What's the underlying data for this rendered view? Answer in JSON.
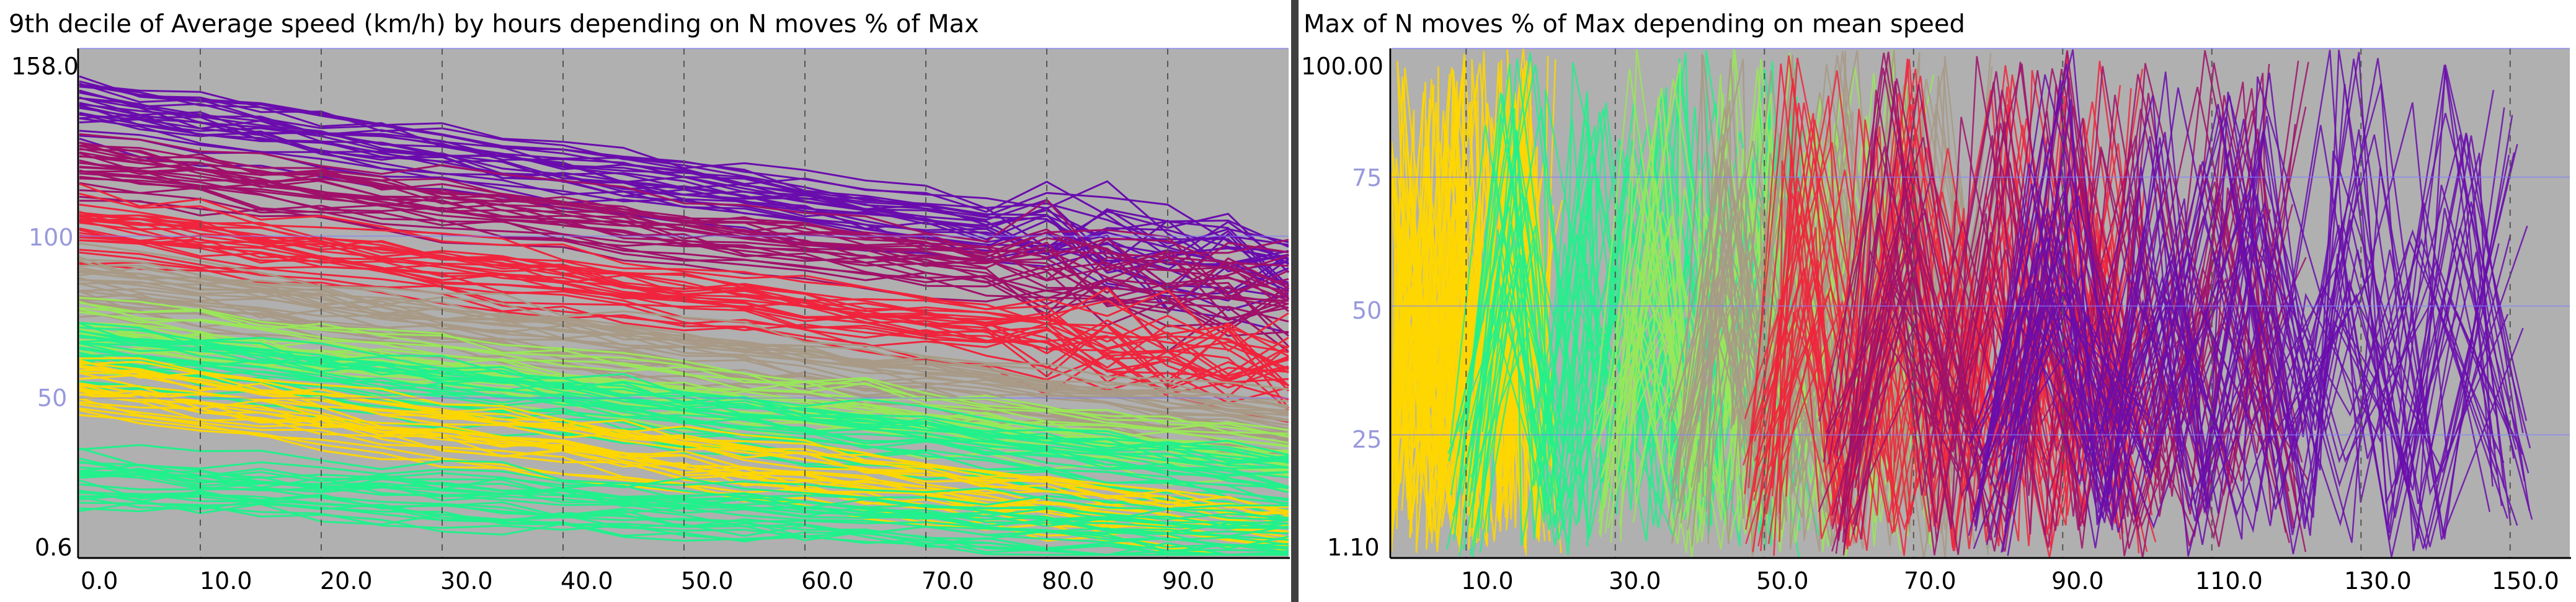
{
  "panels": [
    {
      "title": "9th decile of Average speed (km/h) by hours depending on N moves % of Max",
      "x_ticks": [
        "0.0",
        "10.0",
        "20.0",
        "30.0",
        "40.0",
        "50.0",
        "60.0",
        "70.0",
        "80.0",
        "90.0"
      ],
      "y_ticks": [
        "158.0",
        "100",
        "50",
        "0.6"
      ]
    },
    {
      "title": "Max of N moves % of Max depending on mean speed",
      "x_ticks": [
        "10.0",
        "30.0",
        "50.0",
        "70.0",
        "90.0",
        "110.0",
        "130.0",
        "150.0"
      ],
      "y_ticks": [
        "100.00",
        "75",
        "50",
        "25",
        "1.10"
      ]
    }
  ],
  "chart_data": [
    {
      "type": "line",
      "title": "9th decile of Average speed (km/h) by hours depending on N moves % of Max",
      "xlabel": "",
      "ylabel": "",
      "xlim": [
        0,
        100
      ],
      "ylim": [
        0.6,
        158
      ],
      "x_ticks": [
        0,
        10,
        20,
        30,
        40,
        50,
        60,
        70,
        80,
        90
      ],
      "y_ticks_labeled": [
        158.0,
        100,
        50,
        0.6
      ],
      "grid": true,
      "background": "#b0b0b0",
      "color_bands": [
        {
          "color": "#6a0dad",
          "y_start": 140,
          "y_end": 90
        },
        {
          "color": "#a0106a",
          "y_start": 122,
          "y_end": 80
        },
        {
          "color": "#f0243c",
          "y_start": 104,
          "y_end": 60
        },
        {
          "color": "#a89a86",
          "y_start": 86,
          "y_end": 42
        },
        {
          "color": "#9ae65a",
          "y_start": 72,
          "y_end": 32
        },
        {
          "color": "#22f08c",
          "y_start": 64,
          "y_end": 24
        },
        {
          "color": "#ffd700",
          "y_start": 54,
          "y_end": 8
        },
        {
          "color": "#22f08c",
          "y_start": 24,
          "y_end": 6
        }
      ]
    },
    {
      "type": "line",
      "title": "Max of N moves % of Max depending on mean speed",
      "xlabel": "",
      "ylabel": "",
      "xlim": [
        0,
        158
      ],
      "ylim": [
        1.1,
        100
      ],
      "x_ticks": [
        10,
        30,
        50,
        70,
        90,
        110,
        130,
        150
      ],
      "y_ticks_labeled": [
        100.0,
        75,
        50,
        25,
        1.1
      ],
      "grid": true,
      "background": "#b0b0b0",
      "color_bands": [
        {
          "color": "#ffd700",
          "x_range": [
            0,
            20
          ]
        },
        {
          "color": "#22f08c",
          "x_range": [
            10,
            55
          ]
        },
        {
          "color": "#9ae65a",
          "x_range": [
            30,
            70
          ]
        },
        {
          "color": "#a89a86",
          "x_range": [
            40,
            80
          ]
        },
        {
          "color": "#f0243c",
          "x_range": [
            50,
            100
          ]
        },
        {
          "color": "#a0106a",
          "x_range": [
            60,
            120
          ]
        },
        {
          "color": "#6a0dad",
          "x_range": [
            80,
            150
          ]
        }
      ]
    }
  ],
  "colors": {
    "plot_background": "#b0b0b0",
    "y_tick_label": "#9999dd",
    "first_tick_label": "#000000",
    "horizontal_grid": "#8080ff",
    "vertical_grid": "#555555"
  }
}
